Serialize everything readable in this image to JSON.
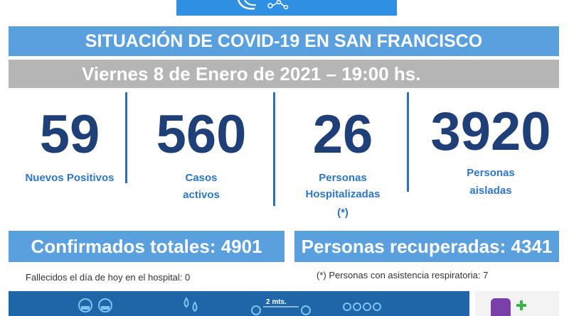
{
  "header": {
    "title": "SITUACIÓN DE COVID-19 EN SAN FRANCISCO",
    "date": "Viernes 8 de Enero de 2021 – 19:00 hs."
  },
  "stats": [
    {
      "value": "59",
      "label_lines": [
        "Nuevos Positivos"
      ]
    },
    {
      "value": "560",
      "label_lines": [
        "Casos",
        "activos"
      ]
    },
    {
      "value": "26",
      "label_lines": [
        "Personas",
        "Hospitalizadas",
        "(*)"
      ]
    },
    {
      "value": "3920",
      "label_lines": [
        "Personas",
        "aisladas"
      ]
    }
  ],
  "totals": {
    "confirmados": "Confirmados totales: 4901",
    "recuperados": "Personas recuperadas: 4341"
  },
  "notes": {
    "fallecidos": "Fallecidos el día de hoy en el hospital: 0",
    "respiratoria": "(*) Personas con asistencia respiratoria: 7"
  },
  "footer": {
    "distance_label": "2 mts."
  },
  "colors": {
    "title_bar": "#5aa0de",
    "date_bar": "#b5b5b5",
    "number": "#1f3f78",
    "label": "#2f76c8",
    "footer": "#1f66a8"
  }
}
